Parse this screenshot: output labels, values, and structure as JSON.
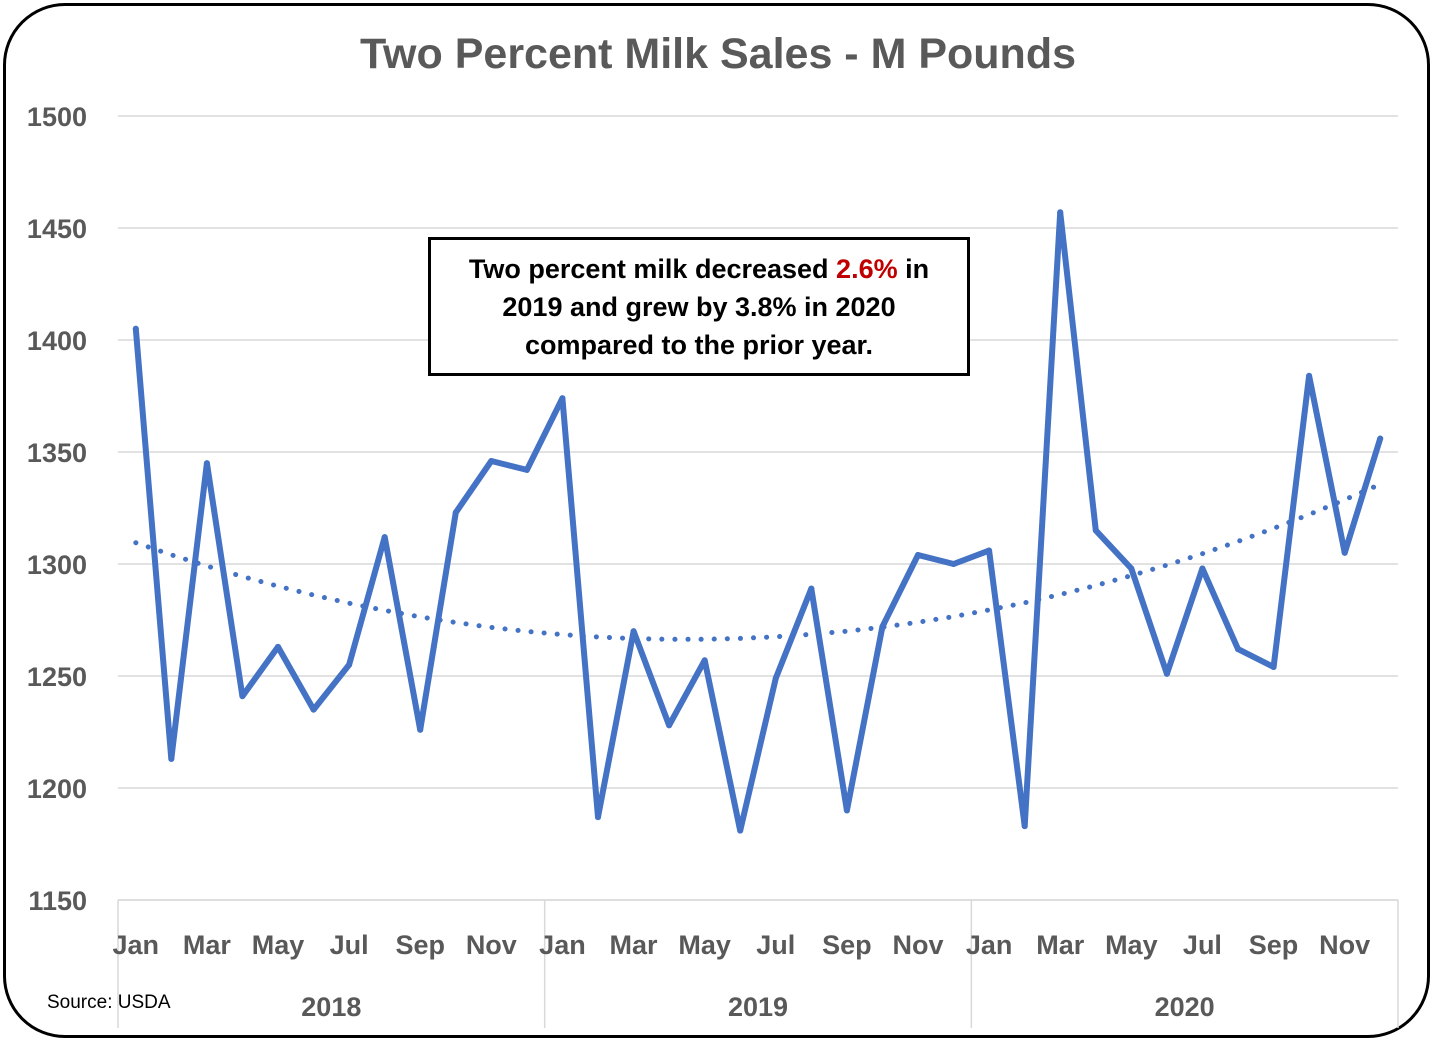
{
  "chart_data": {
    "type": "line",
    "title": "Two Percent Milk Sales - M Pounds",
    "ylim": [
      1150,
      1500
    ],
    "yticks": [
      1500,
      1450,
      1400,
      1350,
      1300,
      1250,
      1200,
      1150
    ],
    "grid": true,
    "month_labels": [
      "Jan",
      "",
      "Mar",
      "",
      "May",
      "",
      "Jul",
      "",
      "Sep",
      "",
      "Nov",
      "",
      "Jan",
      "",
      "Mar",
      "",
      "May",
      "",
      "Jul",
      "",
      "Sep",
      "",
      "Nov",
      "",
      "Jan",
      "",
      "Mar",
      "",
      "May",
      "",
      "Jul",
      "",
      "Sep",
      "",
      "Nov",
      ""
    ],
    "years": [
      "2018",
      "2019",
      "2020"
    ],
    "series": [
      {
        "color": "#4472c4",
        "values": [
          1405,
          1213,
          1345,
          1241,
          1263,
          1235,
          1255,
          1312,
          1226,
          1323,
          1346,
          1342,
          1374,
          1187,
          1270,
          1228,
          1257,
          1181,
          1249,
          1289,
          1190,
          1272,
          1304,
          1300,
          1306,
          1183,
          1457,
          1315,
          1298,
          1251,
          1298,
          1262,
          1254,
          1384,
          1305,
          1356
        ]
      }
    ],
    "trendline": {
      "type": "polynomial",
      "style": "dotted",
      "color": "#4472c4",
      "values": [
        1309.5,
        1304.1,
        1299.1,
        1294.4,
        1290.1,
        1286.1,
        1282.5,
        1279.3,
        1276.4,
        1273.9,
        1271.7,
        1269.9,
        1268.5,
        1267.4,
        1266.7,
        1266.4,
        1266.4,
        1266.8,
        1267.5,
        1268.6,
        1270.0,
        1271.8,
        1274.0,
        1276.5,
        1279.5,
        1282.7,
        1286.4,
        1290.4,
        1294.8,
        1299.5,
        1304.6,
        1310.1,
        1315.9,
        1322.1,
        1328.7,
        1335.6
      ]
    }
  },
  "callout": {
    "line1_before": "Two percent milk decreased ",
    "line1_highlight": "2.6%",
    "line1_after": " in",
    "line2": "2019 and grew by 3.8% in 2020",
    "line3": "compared to the prior year."
  },
  "source": "Source: USDA"
}
